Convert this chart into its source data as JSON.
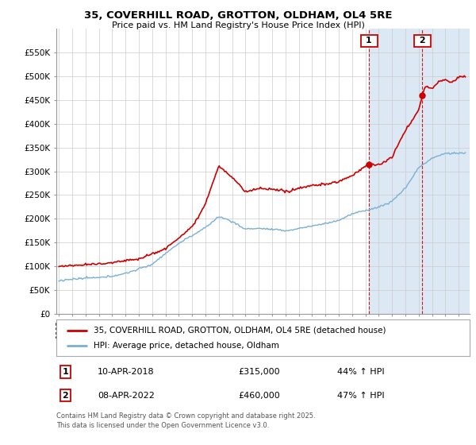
{
  "title_line1": "35, COVERHILL ROAD, GROTTON, OLDHAM, OL4 5RE",
  "title_line2": "Price paid vs. HM Land Registry's House Price Index (HPI)",
  "legend_line1": "35, COVERHILL ROAD, GROTTON, OLDHAM, OL4 5RE (detached house)",
  "legend_line2": "HPI: Average price, detached house, Oldham",
  "sale1_label": "1",
  "sale1_date": "10-APR-2018",
  "sale1_price": "£315,000",
  "sale1_hpi": "44% ↑ HPI",
  "sale2_label": "2",
  "sale2_date": "08-APR-2022",
  "sale2_price": "£460,000",
  "sale2_hpi": "47% ↑ HPI",
  "footer": "Contains HM Land Registry data © Crown copyright and database right 2025.\nThis data is licensed under the Open Government Licence v3.0.",
  "red_color": "#cc0000",
  "blue_color": "#7aafd4",
  "shade_color": "#dce9f5",
  "background_color": "#ffffff",
  "grid_color": "#cccccc",
  "sale1_year": 2018.27,
  "sale2_year": 2022.27,
  "sale1_price_val": 315000,
  "sale2_price_val": 460000,
  "ylim": [
    0,
    600000
  ],
  "xlim_start": 1994.8,
  "xlim_end": 2025.8,
  "ytick_vals": [
    0,
    50000,
    100000,
    150000,
    200000,
    250000,
    300000,
    350000,
    400000,
    450000,
    500000,
    550000
  ],
  "ytick_labels": [
    "£0",
    "£50K",
    "£100K",
    "£150K",
    "£200K",
    "£250K",
    "£300K",
    "£350K",
    "£400K",
    "£450K",
    "£500K",
    "£550K"
  ]
}
